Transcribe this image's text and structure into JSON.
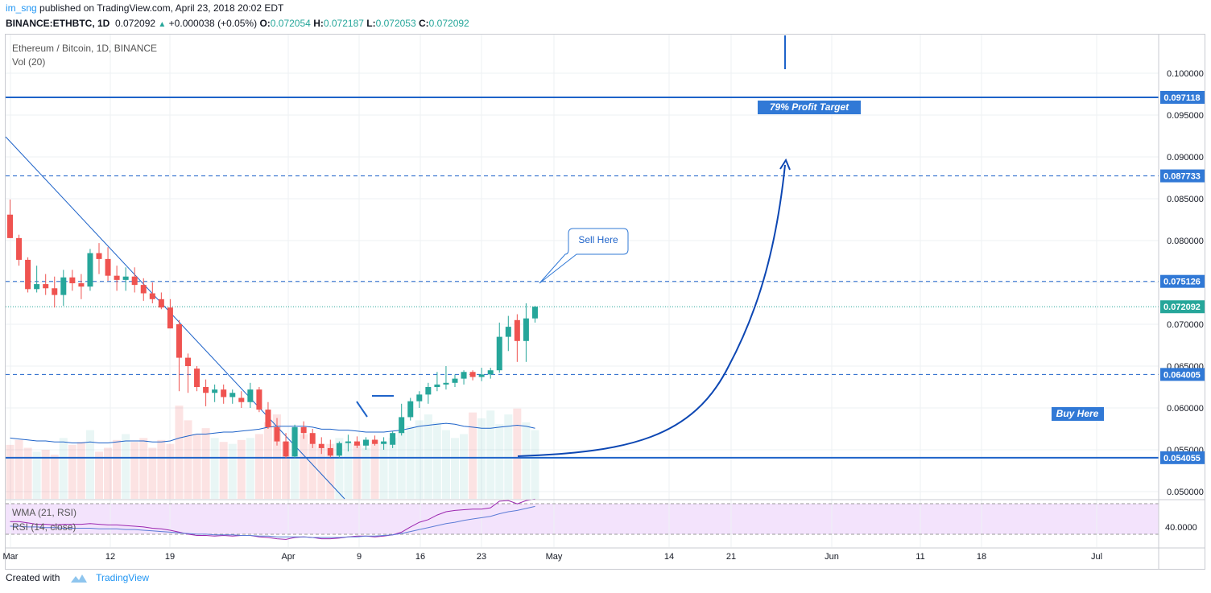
{
  "header": {
    "user": "im_sng",
    "published": "published on TradingView.com, April 23, 2018 20:02 EDT",
    "symbol": "BINANCE:ETHBTC, 1D",
    "price": "0.072092",
    "change": "+0.000038 (+0.05%)",
    "o_label": "O:",
    "o": "0.072054",
    "h_label": "H:",
    "h": "0.072187",
    "l_label": "L:",
    "l": "0.072053",
    "c_label": "C:",
    "c": "0.072092"
  },
  "legend": {
    "title": "Ethereum / Bitcoin, 1D, BINANCE",
    "volume": "Vol (20)",
    "wma": "WMA (21, RSI)",
    "rsi": "RSI (14, close)"
  },
  "footer": {
    "created_with": "Created with",
    "brand": "TradingView"
  },
  "colors": {
    "up": "#26a69a",
    "down": "#ef5350",
    "line": "#1e63c9",
    "label_bg": "#3179d6",
    "rsi_band": "#f3e3fc",
    "rsi_line": "#9c27b0",
    "wma_line": "#5c7bd6"
  },
  "chart_data": {
    "type": "candlestick",
    "title": "Ethereum / Bitcoin, 1D, BINANCE",
    "price_range": [
      0.0488,
      0.1045
    ],
    "price_ticks": [
      "0.050000",
      "0.055000",
      "0.060000",
      "0.065000",
      "0.070000",
      "0.075000",
      "0.080000",
      "0.085000",
      "0.090000",
      "0.095000",
      "0.100000"
    ],
    "x_ticks": [
      "Mar",
      "12",
      "19",
      "Apr",
      "9",
      "16",
      "23",
      "May",
      "14",
      "21",
      "Jun",
      "11",
      "18",
      "Jul"
    ],
    "candles": [
      {
        "o": 0.0831,
        "h": 0.0849,
        "l": 0.0803,
        "c": 0.0803
      },
      {
        "o": 0.0803,
        "h": 0.0807,
        "l": 0.077,
        "c": 0.0777
      },
      {
        "o": 0.0777,
        "h": 0.078,
        "l": 0.0738,
        "c": 0.0742
      },
      {
        "o": 0.0742,
        "h": 0.077,
        "l": 0.0738,
        "c": 0.0748
      },
      {
        "o": 0.0748,
        "h": 0.076,
        "l": 0.0735,
        "c": 0.0743
      },
      {
        "o": 0.0743,
        "h": 0.0757,
        "l": 0.072,
        "c": 0.0735
      },
      {
        "o": 0.0735,
        "h": 0.0765,
        "l": 0.0722,
        "c": 0.0756
      },
      {
        "o": 0.0756,
        "h": 0.0765,
        "l": 0.074,
        "c": 0.0749
      },
      {
        "o": 0.0749,
        "h": 0.076,
        "l": 0.073,
        "c": 0.0745
      },
      {
        "o": 0.0745,
        "h": 0.079,
        "l": 0.074,
        "c": 0.0785
      },
      {
        "o": 0.0785,
        "h": 0.0797,
        "l": 0.076,
        "c": 0.0778
      },
      {
        "o": 0.0778,
        "h": 0.0792,
        "l": 0.0752,
        "c": 0.0758
      },
      {
        "o": 0.0758,
        "h": 0.077,
        "l": 0.074,
        "c": 0.0753
      },
      {
        "o": 0.0753,
        "h": 0.0768,
        "l": 0.074,
        "c": 0.0757
      },
      {
        "o": 0.0757,
        "h": 0.0768,
        "l": 0.0738,
        "c": 0.0747
      },
      {
        "o": 0.0747,
        "h": 0.0755,
        "l": 0.0728,
        "c": 0.0737
      },
      {
        "o": 0.0737,
        "h": 0.075,
        "l": 0.0725,
        "c": 0.073
      },
      {
        "o": 0.073,
        "h": 0.0738,
        "l": 0.0718,
        "c": 0.072
      },
      {
        "o": 0.072,
        "h": 0.073,
        "l": 0.0695,
        "c": 0.0695
      },
      {
        "o": 0.07,
        "h": 0.0705,
        "l": 0.062,
        "c": 0.066
      },
      {
        "o": 0.066,
        "h": 0.0665,
        "l": 0.0618,
        "c": 0.065
      },
      {
        "o": 0.0647,
        "h": 0.065,
        "l": 0.062,
        "c": 0.0625
      },
      {
        "o": 0.0625,
        "h": 0.0634,
        "l": 0.0602,
        "c": 0.0618
      },
      {
        "o": 0.0618,
        "h": 0.0628,
        "l": 0.0607,
        "c": 0.0622
      },
      {
        "o": 0.0622,
        "h": 0.0628,
        "l": 0.0605,
        "c": 0.0613
      },
      {
        "o": 0.0613,
        "h": 0.0622,
        "l": 0.0605,
        "c": 0.0618
      },
      {
        "o": 0.0612,
        "h": 0.062,
        "l": 0.06,
        "c": 0.0607
      },
      {
        "o": 0.0607,
        "h": 0.063,
        "l": 0.06,
        "c": 0.0622
      },
      {
        "o": 0.0622,
        "h": 0.0625,
        "l": 0.0595,
        "c": 0.0598
      },
      {
        "o": 0.0598,
        "h": 0.0607,
        "l": 0.0575,
        "c": 0.0577
      },
      {
        "o": 0.0577,
        "h": 0.0588,
        "l": 0.0555,
        "c": 0.056
      },
      {
        "o": 0.056,
        "h": 0.057,
        "l": 0.054,
        "c": 0.0542
      },
      {
        "o": 0.0542,
        "h": 0.058,
        "l": 0.054,
        "c": 0.0577
      },
      {
        "o": 0.0577,
        "h": 0.0584,
        "l": 0.0563,
        "c": 0.057
      },
      {
        "o": 0.057,
        "h": 0.0575,
        "l": 0.0552,
        "c": 0.0557
      },
      {
        "o": 0.0557,
        "h": 0.0565,
        "l": 0.0545,
        "c": 0.0552
      },
      {
        "o": 0.0552,
        "h": 0.0562,
        "l": 0.0541,
        "c": 0.0543
      },
      {
        "o": 0.0543,
        "h": 0.056,
        "l": 0.054,
        "c": 0.0558
      },
      {
        "o": 0.0558,
        "h": 0.0568,
        "l": 0.0548,
        "c": 0.056
      },
      {
        "o": 0.056,
        "h": 0.0566,
        "l": 0.0552,
        "c": 0.0555
      },
      {
        "o": 0.0555,
        "h": 0.0565,
        "l": 0.055,
        "c": 0.0562
      },
      {
        "o": 0.0562,
        "h": 0.0567,
        "l": 0.0555,
        "c": 0.0557
      },
      {
        "o": 0.0557,
        "h": 0.0565,
        "l": 0.055,
        "c": 0.056
      },
      {
        "o": 0.0556,
        "h": 0.0572,
        "l": 0.0552,
        "c": 0.057
      },
      {
        "o": 0.057,
        "h": 0.0605,
        "l": 0.0567,
        "c": 0.0589
      },
      {
        "o": 0.0589,
        "h": 0.0612,
        "l": 0.0585,
        "c": 0.0608
      },
      {
        "o": 0.0608,
        "h": 0.062,
        "l": 0.06,
        "c": 0.0616
      },
      {
        "o": 0.0616,
        "h": 0.063,
        "l": 0.0605,
        "c": 0.0625
      },
      {
        "o": 0.0625,
        "h": 0.0643,
        "l": 0.062,
        "c": 0.0628
      },
      {
        "o": 0.0628,
        "h": 0.065,
        "l": 0.0622,
        "c": 0.063
      },
      {
        "o": 0.063,
        "h": 0.064,
        "l": 0.0625,
        "c": 0.0635
      },
      {
        "o": 0.0635,
        "h": 0.0645,
        "l": 0.0628,
        "c": 0.0643
      },
      {
        "o": 0.0643,
        "h": 0.0645,
        "l": 0.0633,
        "c": 0.0637
      },
      {
        "o": 0.0637,
        "h": 0.0648,
        "l": 0.0632,
        "c": 0.064
      },
      {
        "o": 0.064,
        "h": 0.0648,
        "l": 0.0635,
        "c": 0.0645
      },
      {
        "o": 0.0645,
        "h": 0.0702,
        "l": 0.0642,
        "c": 0.0685
      },
      {
        "o": 0.0685,
        "h": 0.071,
        "l": 0.0668,
        "c": 0.0697
      },
      {
        "o": 0.0705,
        "h": 0.0712,
        "l": 0.0655,
        "c": 0.068
      },
      {
        "o": 0.068,
        "h": 0.0725,
        "l": 0.0655,
        "c": 0.0707
      },
      {
        "o": 0.0707,
        "h": 0.0722,
        "l": 0.0702,
        "c": 0.0721
      }
    ],
    "volume": [
      55,
      60,
      52,
      48,
      50,
      45,
      62,
      55,
      58,
      70,
      48,
      52,
      60,
      66,
      58,
      62,
      52,
      60,
      56,
      95,
      80,
      66,
      72,
      62,
      58,
      56,
      60,
      62,
      66,
      78,
      86,
      58,
      72,
      66,
      56,
      52,
      56,
      62,
      58,
      56,
      52,
      60,
      58,
      62,
      68,
      74,
      80,
      86,
      78,
      70,
      62,
      66,
      88,
      82,
      90,
      76,
      86,
      92,
      78,
      70
    ],
    "volume_ma": [
      62,
      61,
      60,
      59,
      59,
      58,
      58,
      57,
      57,
      58,
      57,
      57,
      58,
      59,
      59,
      59,
      58,
      58,
      59,
      62,
      64,
      66,
      66,
      67,
      68,
      68,
      69,
      70,
      71,
      73,
      74,
      74,
      74,
      74,
      73,
      71,
      71,
      70,
      70,
      69,
      68,
      68,
      68,
      69,
      70,
      72,
      74,
      75,
      76,
      77,
      76,
      74,
      73,
      72,
      72,
      73,
      74,
      75,
      74,
      72
    ],
    "horizontal_levels": [
      {
        "price": 0.097118,
        "label": "0.097118",
        "style": "solid"
      },
      {
        "price": 0.087733,
        "label": "0.087733",
        "style": "dashed"
      },
      {
        "price": 0.075126,
        "label": "0.075126",
        "style": "dashed"
      },
      {
        "price": 0.072092,
        "label": "0.072092",
        "style": "dotted",
        "color": "#26a69a"
      },
      {
        "price": 0.064005,
        "label": "0.064005",
        "style": "dashed"
      },
      {
        "price": 0.054055,
        "label": "0.054055",
        "style": "solid"
      }
    ],
    "annotations": [
      {
        "text": "Sell Here",
        "type": "callout"
      },
      {
        "text": "79% Profit Target",
        "type": "label"
      },
      {
        "text": "Buy Here",
        "type": "label"
      }
    ],
    "rsi": {
      "tick": "40.0000",
      "rsi_values": [
        35,
        35,
        33,
        31,
        31,
        30,
        31,
        31,
        31,
        32,
        31,
        30,
        30,
        29,
        28,
        27,
        25,
        24,
        22,
        19,
        16,
        14,
        14,
        13,
        14,
        13,
        14,
        14,
        12,
        11,
        9,
        8,
        11,
        12,
        11,
        9,
        9,
        10,
        12,
        13,
        13,
        12,
        13,
        15,
        19,
        27,
        34,
        38,
        45,
        50,
        52,
        53,
        54,
        54,
        56,
        66,
        67,
        62,
        67,
        69
      ],
      "wma_values": [
        28,
        28,
        27,
        27,
        26,
        26,
        25,
        25,
        25,
        25,
        24,
        24,
        24,
        23,
        23,
        22,
        21,
        20,
        19,
        18,
        17,
        16,
        16,
        15,
        15,
        15,
        14,
        14,
        13,
        13,
        12,
        12,
        12,
        12,
        11,
        11,
        11,
        11,
        12,
        12,
        13,
        13,
        14,
        15,
        17,
        20,
        23,
        26,
        29,
        32,
        34,
        37,
        39,
        41,
        43,
        47,
        50,
        52,
        55,
        58
      ]
    }
  }
}
